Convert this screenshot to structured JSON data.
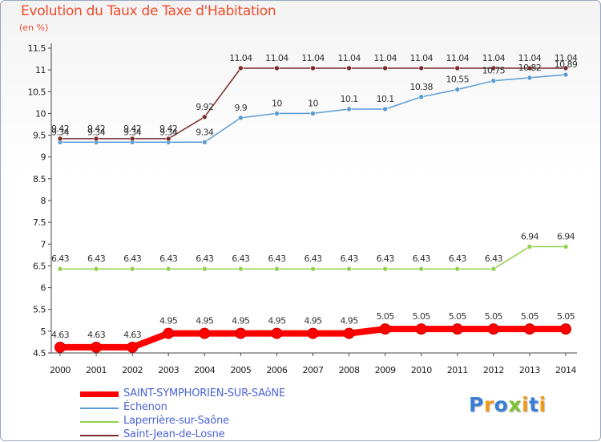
{
  "header": {
    "title": "Evolution du Taux de Taxe d'Habitation",
    "unit": "(en %)"
  },
  "logo": {
    "letters": [
      "P",
      "r",
      "o",
      "x",
      "i",
      "t",
      "i"
    ],
    "colors": [
      "#3a7fd6",
      "#f29a1a",
      "#3a7fd6",
      "#7cc232",
      "#f29a1a",
      "#3a7fd6",
      "#f29a1a"
    ]
  },
  "chart_data": {
    "type": "line",
    "title": "Evolution du Taux de Taxe d'Habitation",
    "ylabel": "(en %)",
    "xlabel": "",
    "x": [
      "2000",
      "2001",
      "2002",
      "2003",
      "2004",
      "2005",
      "2006",
      "2007",
      "2008",
      "2009",
      "2010",
      "2011",
      "2012",
      "2013",
      "2014"
    ],
    "ylim": [
      4.5,
      11.5
    ],
    "yticks": [
      "4.5",
      "5",
      "5.5",
      "6",
      "6.5",
      "7",
      "7.5",
      "8",
      "8.5",
      "9",
      "9.5",
      "10",
      "10.5",
      "11",
      "11.5"
    ],
    "grid": false,
    "legend_position": "bottom-left",
    "series": [
      {
        "name": "SAINT-SYMPHORIEN-SUR-SAôNE",
        "color": "#ff0000",
        "values": [
          4.63,
          4.63,
          4.63,
          4.95,
          4.95,
          4.95,
          4.95,
          4.95,
          4.95,
          5.05,
          5.05,
          5.05,
          5.05,
          5.05,
          5.05
        ],
        "labels": [
          "4.63",
          "4.63",
          "4.63",
          "4.95",
          "4.95",
          "4.95",
          "4.95",
          "4.95",
          "4.95",
          "5.05",
          "5.05",
          "5.05",
          "5.05",
          "5.05",
          "5.05"
        ]
      },
      {
        "name": "Échenon",
        "color": "#5b9bd5",
        "values": [
          9.34,
          9.34,
          9.34,
          9.34,
          9.34,
          9.9,
          10,
          10,
          10.1,
          10.1,
          10.38,
          10.55,
          10.75,
          10.82,
          10.89
        ],
        "labels": [
          "9.34",
          "9.34",
          "9.34",
          "9.34",
          "9.34",
          "9.9",
          "10",
          "10",
          "10.1",
          "10.1",
          "10.38",
          "10.55",
          "10.75",
          "10.82",
          "10.89"
        ]
      },
      {
        "name": "Laperrière-sur-Saône",
        "color": "#92d050",
        "values": [
          6.43,
          6.43,
          6.43,
          6.43,
          6.43,
          6.43,
          6.43,
          6.43,
          6.43,
          6.43,
          6.43,
          6.43,
          6.43,
          6.94,
          6.94
        ],
        "labels": [
          "6.43",
          "6.43",
          "6.43",
          "6.43",
          "6.43",
          "6.43",
          "6.43",
          "6.43",
          "6.43",
          "6.43",
          "6.43",
          "6.43",
          "6.43",
          "6.94",
          "6.94"
        ]
      },
      {
        "name": "Saint-Jean-de-Losne",
        "color": "#7b2a2a",
        "values": [
          9.42,
          9.42,
          9.42,
          9.42,
          9.92,
          11.04,
          11.04,
          11.04,
          11.04,
          11.04,
          11.04,
          11.04,
          11.04,
          11.04,
          11.04
        ],
        "labels": [
          "9.42",
          "9.42",
          "9.42",
          "9.42",
          "9.92",
          "11.04",
          "11.04",
          "11.04",
          "11.04",
          "11.04",
          "11.04",
          "11.04",
          "11.04",
          "11.04",
          "11.04"
        ]
      }
    ]
  }
}
